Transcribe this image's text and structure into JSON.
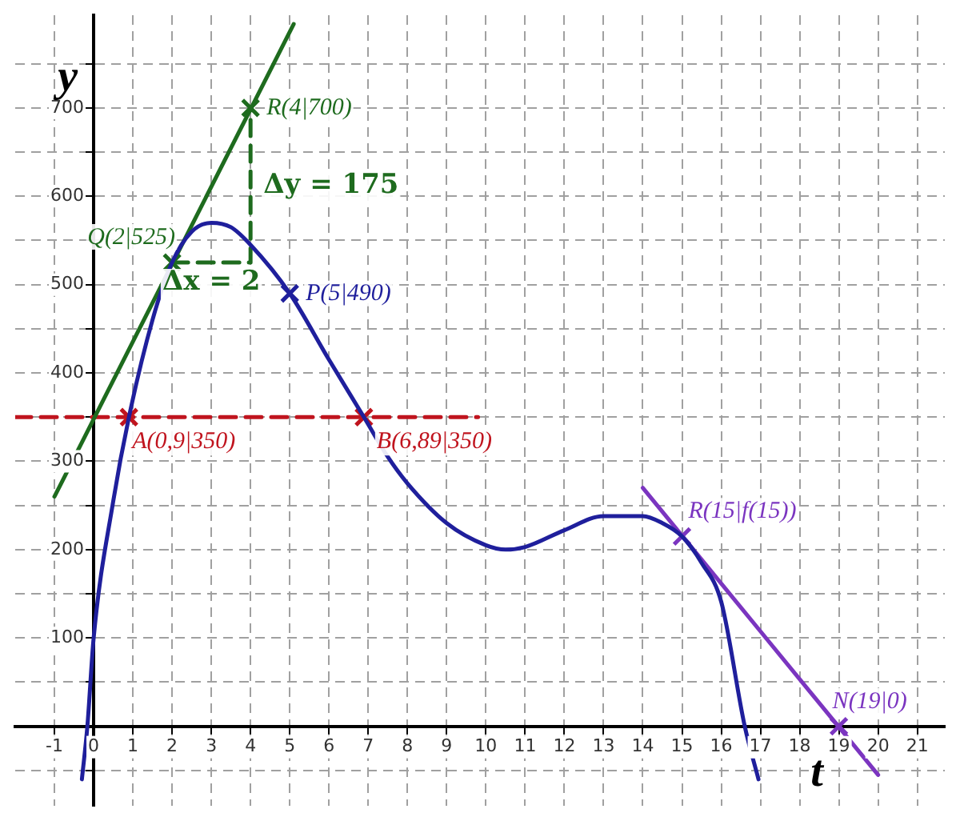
{
  "chart_data": {
    "type": "line",
    "xlabel": "t",
    "ylabel": "y",
    "xlim": [
      -2,
      21.7
    ],
    "ylim": [
      -90,
      805
    ],
    "xticks": [
      -1,
      0,
      1,
      2,
      3,
      4,
      5,
      6,
      7,
      8,
      9,
      10,
      11,
      12,
      13,
      14,
      15,
      16,
      17,
      18,
      19,
      20,
      21
    ],
    "yticks": [
      {
        "value": -50,
        "label": null
      },
      {
        "value": 0,
        "label": null
      },
      {
        "value": 50,
        "label": null
      },
      100,
      {
        "value": 150,
        "label": null
      },
      200,
      {
        "value": 250,
        "label": null
      },
      300,
      {
        "value": 350,
        "label": null
      },
      400,
      {
        "value": 450,
        "label": null
      },
      500,
      {
        "value": 550,
        "label": null
      },
      600,
      {
        "value": 650,
        "label": null
      },
      700,
      {
        "value": 750,
        "label": null
      }
    ],
    "grid": true,
    "legend": false,
    "series": [
      {
        "color": "#1f1f9c",
        "x": [
          -0.3,
          -0.16,
          0,
          0.5,
          0.9,
          1.5,
          2,
          2.5,
          3,
          3.5,
          4,
          5,
          6,
          6.89,
          7.5,
          8,
          9,
          10,
          10.5,
          11,
          12,
          13,
          14,
          14.5,
          15,
          15.5,
          16,
          16.6,
          16.95
        ],
        "values": [
          -60,
          0,
          100,
          255,
          350,
          460,
          525,
          560,
          570,
          565,
          545,
          490,
          415,
          350,
          305,
          275,
          230,
          205,
          200,
          203,
          222,
          238,
          238,
          230,
          215,
          185,
          141,
          0,
          -60
        ]
      },
      {
        "color": "#1e6b1e",
        "x": [
          -1,
          5.1
        ],
        "values": [
          260,
          795
        ]
      },
      {
        "color": "#1e6b1e",
        "line_style": "dashed",
        "x": [
          2,
          4,
          4
        ],
        "values": [
          525,
          525,
          700
        ]
      },
      {
        "color": "#c0141e",
        "line_style": "dashed",
        "x": [
          -2,
          9.8
        ],
        "values": [
          350,
          350
        ]
      },
      {
        "color": "#7b35c0",
        "x": [
          14,
          20
        ],
        "values": [
          270,
          -55
        ]
      },
      {
        "type": "scatter",
        "marker": "cross",
        "color": "#c0141e",
        "x": [
          0.9,
          6.89
        ],
        "values": [
          350,
          350
        ]
      },
      {
        "type": "scatter",
        "marker": "cross",
        "color": "#1e6b1e",
        "x": [
          2,
          4
        ],
        "values": [
          525,
          700
        ]
      },
      {
        "type": "scatter",
        "marker": "cross",
        "color": "#1f1f9c",
        "x": [
          5
        ],
        "values": [
          490
        ]
      },
      {
        "type": "scatter",
        "marker": "cross",
        "color": "#7b35c0",
        "x": [
          15,
          19
        ],
        "values": [
          215,
          0
        ]
      }
    ],
    "annotations": [
      {
        "text": "R(4|700)",
        "x": 4,
        "y": 700
      },
      {
        "text": "Δy = 175",
        "x": 4,
        "y": 612
      },
      {
        "text": "Q(2|525)",
        "x": 2,
        "y": 525
      },
      {
        "text": "Δx = 2",
        "x": 3,
        "y": 525
      },
      {
        "text": "P(5|490)",
        "x": 5,
        "y": 490
      },
      {
        "text": "A(0,9|350)",
        "x": 0.9,
        "y": 350
      },
      {
        "text": "B(6,89|350)",
        "x": 6.89,
        "y": 350
      },
      {
        "text": "R(15|f(15))",
        "x": 15,
        "y": 215
      },
      {
        "text": "N(19|0)",
        "x": 19,
        "y": 0
      }
    ]
  }
}
